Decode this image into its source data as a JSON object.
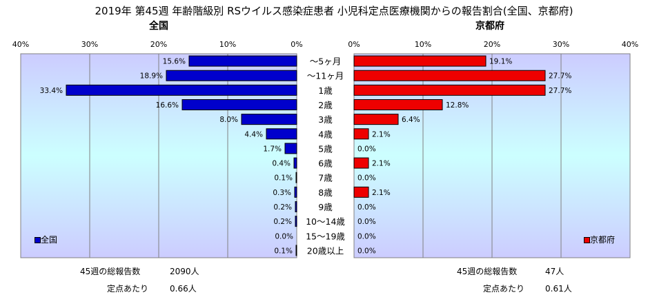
{
  "title": "2019年 第45週 年齢階級別 RSウイルス感染症患者 小児科定点医療機関からの報告割合(全国、京都府)",
  "colors": {
    "national_bar": "#0000cc",
    "kyoto_bar": "#ee0000",
    "plot_bg_top": "#ccccff",
    "plot_bg_mid": "#ccffff",
    "plot_bg_bottom": "#ccccff"
  },
  "chart_data": [
    {
      "type": "bar",
      "orientation": "horizontal",
      "direction": "right-to-left",
      "title": "全国",
      "categories": [
        "～5ヶ月",
        "～11ヶ月",
        "1歳",
        "2歳",
        "3歳",
        "4歳",
        "5歳",
        "6歳",
        "7歳",
        "8歳",
        "9歳",
        "10～14歳",
        "15～19歳",
        "20歳以上"
      ],
      "values": [
        15.6,
        18.9,
        33.4,
        16.6,
        8.0,
        4.4,
        1.7,
        0.4,
        0.1,
        0.3,
        0.2,
        0.2,
        0.0,
        0.1
      ],
      "value_labels": [
        "15.6%",
        "18.9%",
        "33.4%",
        "16.6%",
        "8.0%",
        "4.4%",
        "1.7%",
        "0.4%",
        "0.1%",
        "0.3%",
        "0.2%",
        "0.2%",
        "0.0%",
        "0.1%"
      ],
      "xlim": [
        0,
        40
      ],
      "ticks": [
        "40%",
        "30%",
        "20%",
        "10%",
        "0%"
      ],
      "legend": "全国",
      "legend_position": "bottom-left"
    },
    {
      "type": "bar",
      "orientation": "horizontal",
      "direction": "left-to-right",
      "title": "京都府",
      "categories": [
        "～5ヶ月",
        "～11ヶ月",
        "1歳",
        "2歳",
        "3歳",
        "4歳",
        "5歳",
        "6歳",
        "7歳",
        "8歳",
        "9歳",
        "10～14歳",
        "15～19歳",
        "20歳以上"
      ],
      "values": [
        19.1,
        27.7,
        27.7,
        12.8,
        6.4,
        2.1,
        0.0,
        2.1,
        0.0,
        2.1,
        0.0,
        0.0,
        0.0,
        0.0
      ],
      "value_labels": [
        "19.1%",
        "27.7%",
        "27.7%",
        "12.8%",
        "6.4%",
        "2.1%",
        "0.0%",
        "2.1%",
        "0.0%",
        "2.1%",
        "0.0%",
        "0.0%",
        "0.0%",
        "0.0%"
      ],
      "xlim": [
        0,
        40
      ],
      "ticks": [
        "0%",
        "10%",
        "20%",
        "30%",
        "40%"
      ],
      "legend": "京都府",
      "legend_position": "bottom-right"
    }
  ],
  "footer": {
    "national": {
      "total_label": "45週の総報告数",
      "total_value": "2090人",
      "per_site_label": "定点あたり",
      "per_site_value": "0.66人"
    },
    "kyoto": {
      "total_label": "45週の総報告数",
      "total_value": "47人",
      "per_site_label": "定点あたり",
      "per_site_value": "0.61人"
    }
  }
}
